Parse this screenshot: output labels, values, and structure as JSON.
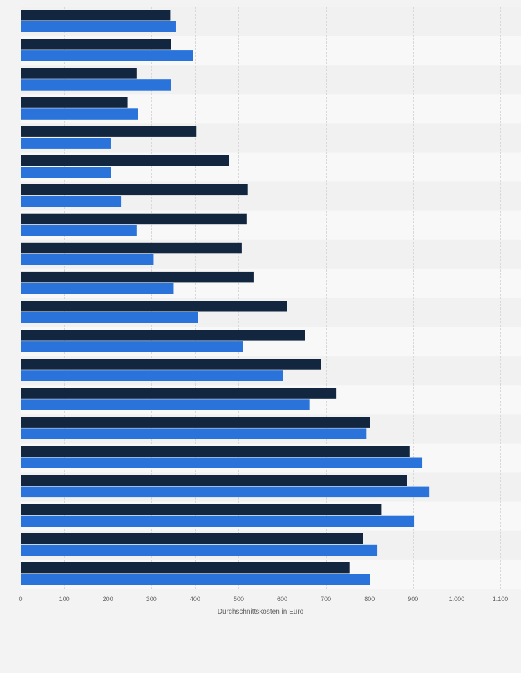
{
  "chart_data": {
    "type": "bar",
    "orientation": "horizontal",
    "title": "",
    "xlabel": "Durchschnittskosten in Euro",
    "ylabel": "",
    "xlim": [
      0,
      1100
    ],
    "x_ticks": [
      0,
      100,
      200,
      300,
      400,
      500,
      600,
      700,
      800,
      900,
      1000,
      1100
    ],
    "x_tick_labels": [
      "0",
      "100",
      "200",
      "300",
      "400",
      "500",
      "600",
      "700",
      "800",
      "900",
      "1.000",
      "1.100"
    ],
    "grid": true,
    "legend": "none",
    "categories": [
      "",
      "",
      "",
      "",
      "",
      "",
      "",
      "",
      "",
      "",
      "",
      "",
      "",
      "",
      "",
      "",
      "",
      "",
      "",
      ""
    ],
    "series": [
      {
        "color": "#13263f",
        "values": [
          343,
          344,
          266,
          245,
          403,
          478,
          521,
          518,
          507,
          534,
          611,
          652,
          688,
          723,
          802,
          892,
          886,
          828,
          786,
          754
        ]
      },
      {
        "color": "#2a73db",
        "values": [
          355,
          396,
          344,
          268,
          206,
          207,
          230,
          266,
          305,
          351,
          407,
          510,
          602,
          662,
          793,
          921,
          937,
          902,
          818,
          802
        ]
      }
    ]
  }
}
